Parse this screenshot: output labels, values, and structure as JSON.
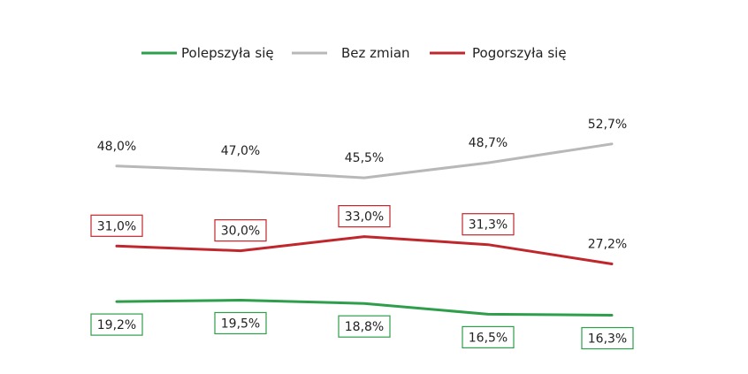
{
  "chart_data": {
    "type": "line",
    "categories": [
      "",
      "",
      "",
      "",
      ""
    ],
    "ylim": [
      10,
      60
    ],
    "grid": false,
    "legend_position": "top-center",
    "series": [
      {
        "name": "Polepszyła się",
        "color": "#2e9e4b",
        "values": [
          19.2,
          19.5,
          18.8,
          16.5,
          16.3
        ],
        "labels": [
          "19,2%",
          "19,5%",
          "18,8%",
          "16,5%",
          "16,3%"
        ],
        "label_boxed": true,
        "label_position": "below"
      },
      {
        "name": "Bez zmian",
        "color": "#b8b8b8",
        "values": [
          48.0,
          47.0,
          45.5,
          48.7,
          52.7
        ],
        "labels": [
          "48,0%",
          "47,0%",
          "45,5%",
          "48,7%",
          "52,7%"
        ],
        "label_boxed": false,
        "label_position": "above"
      },
      {
        "name": "Pogorszyła się",
        "color": "#c0272d",
        "values": [
          31.0,
          30.0,
          33.0,
          31.3,
          27.2
        ],
        "labels": [
          "31,0%",
          "30,0%",
          "33,0%",
          "31,3%",
          "27,2%"
        ],
        "label_boxed": [
          true,
          true,
          true,
          true,
          false
        ],
        "label_position": "above"
      }
    ]
  }
}
